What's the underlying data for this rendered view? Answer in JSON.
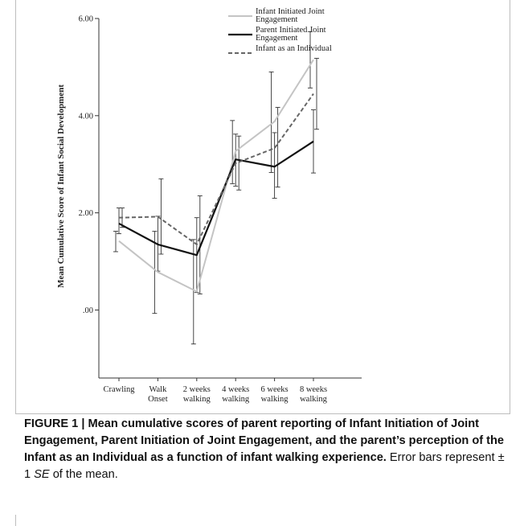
{
  "chart_data": {
    "type": "line",
    "title": "",
    "xlabel": "",
    "ylabel": "Mean Cumulative Score of Infant Social Development",
    "categories": [
      [
        "Crawling"
      ],
      [
        "Walk",
        "Onset"
      ],
      [
        "2 weeks",
        "walking"
      ],
      [
        "4 weeks",
        "walking"
      ],
      [
        "6 weeks",
        "walking"
      ],
      [
        "8 weeks",
        "walking"
      ]
    ],
    "ylim": [
      -1.4,
      6.0
    ],
    "yticks": [
      {
        "value": 0,
        "label": ".00"
      },
      {
        "value": 2,
        "label": "2.00"
      },
      {
        "value": 4,
        "label": "4.00"
      },
      {
        "value": 6,
        "label": "6.00"
      }
    ],
    "legend_position": "top-right",
    "series": [
      {
        "name": "Infant Initiated Joint Engagement",
        "name_lines": [
          "Infant Initiated Joint",
          "Engagement"
        ],
        "color": "#c4c4c4",
        "style": "solid",
        "values": [
          1.42,
          0.78,
          0.38,
          3.27,
          3.88,
          5.15
        ],
        "err_low": [
          1.2,
          -0.07,
          -0.7,
          2.6,
          2.83,
          4.57
        ],
        "err_high": [
          1.62,
          1.62,
          1.45,
          3.9,
          4.9,
          5.73
        ]
      },
      {
        "name": "Parent Initiated Joint Engagement",
        "name_lines": [
          "Parent Initiated Joint",
          "Engagement"
        ],
        "color": "#111111",
        "style": "solid",
        "values": [
          1.78,
          1.35,
          1.13,
          3.1,
          2.95,
          3.47
        ],
        "err_low": [
          1.57,
          0.8,
          0.36,
          2.55,
          2.3,
          2.82
        ],
        "err_high": [
          2.1,
          1.93,
          1.9,
          3.62,
          3.65,
          4.12
        ]
      },
      {
        "name": "Infant as an Individual",
        "name_lines": [
          "Infant as an Individual"
        ],
        "color": "#666666",
        "style": "dashed",
        "values": [
          1.9,
          1.92,
          1.35,
          3.02,
          3.33,
          4.45
        ],
        "err_low": [
          1.7,
          1.15,
          0.33,
          2.47,
          2.53,
          3.72
        ],
        "err_high": [
          2.1,
          2.7,
          2.35,
          3.58,
          4.17,
          5.18
        ]
      }
    ]
  },
  "caption": {
    "bold": "FIGURE 1 | Mean cumulative scores of parent reporting of Infant Initiation of Joint Engagement, Parent Initiation of Joint Engagement, and the parent’s perception of the Infant as an Individual as a function of infant walking experience.",
    "text_before_se": " Error bars represent ± 1 ",
    "se": "SE",
    "text_after_se": " of the mean."
  }
}
